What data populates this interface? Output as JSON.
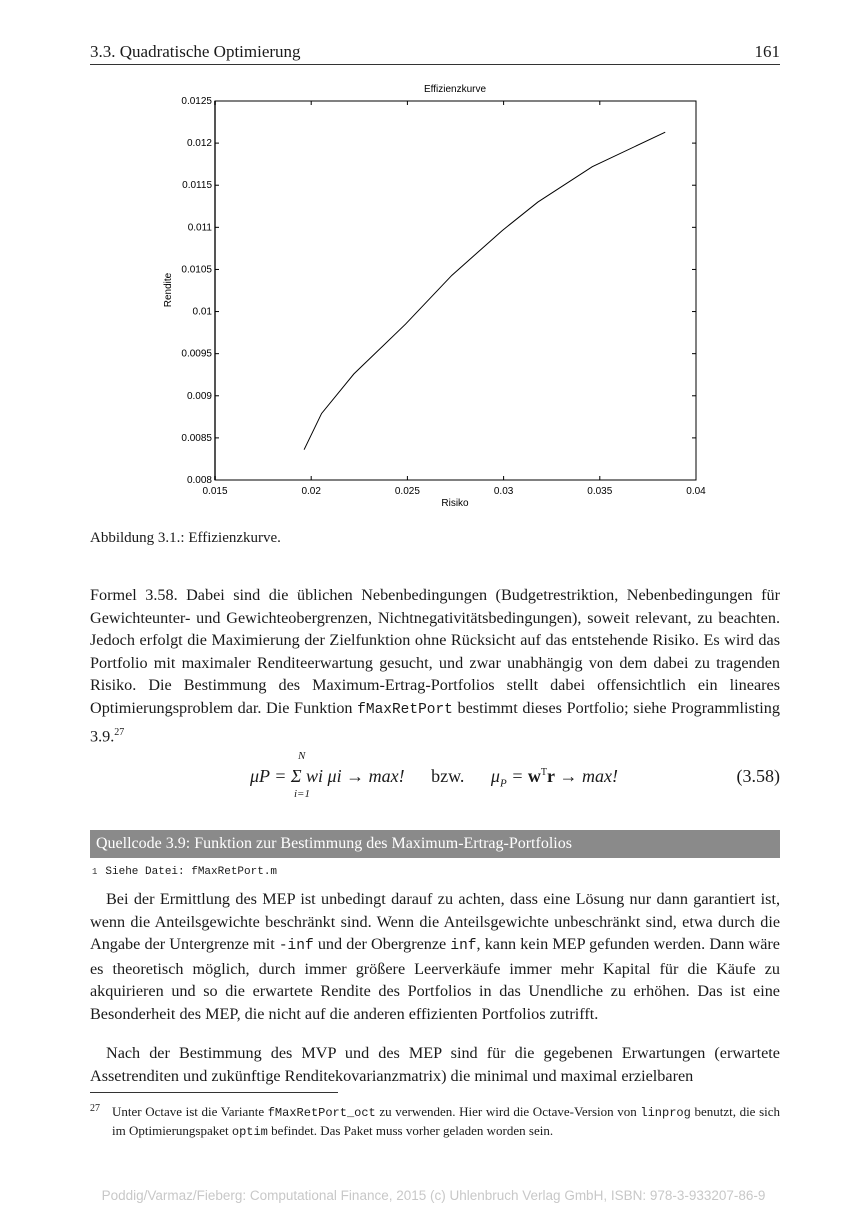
{
  "header": {
    "section": "3.3.  Quadratische Optimierung",
    "page_number": "161"
  },
  "chart_data": {
    "type": "line",
    "title": "Effizienzkurve",
    "xlabel": "Risiko",
    "ylabel": "Rendite",
    "xlim": [
      0.015,
      0.04
    ],
    "ylim": [
      0.008,
      0.0125
    ],
    "xticks": [
      "0.015",
      "0.02",
      "0.025",
      "0.03",
      "0.035",
      "0.04"
    ],
    "yticks": [
      "0.008",
      "0.0085",
      "0.009",
      "0.0095",
      "0.01",
      "0.0105",
      "0.011",
      "0.0115",
      "0.012",
      "0.0125"
    ],
    "grid": false,
    "x": [
      0.01963,
      0.02054,
      0.02222,
      0.0249,
      0.02731,
      0.02992,
      0.03178,
      0.03461,
      0.0384
    ],
    "y": [
      0.00836,
      0.00879,
      0.00926,
      0.00985,
      0.01043,
      0.01096,
      0.0113,
      0.01172,
      0.01213
    ],
    "color": "#000000"
  },
  "figure_caption": "Abbildung 3.1.: Effizienzkurve.",
  "paragraph1": {
    "text_before": "Formel 3.58. Dabei sind die üblichen Nebenbedingungen (Budgetrestriktion, Nebenbedingungen für Gewichteunter- und Gewichteobergrenzen, Nichtnegativitätsbedingungen), soweit relevant, zu beachten. Jedoch erfolgt die Maximierung der Zielfunktion ohne Rücksicht auf das entstehende Risiko. Es wird das Portfolio mit maximaler Renditeerwartung gesucht, und zwar unabhängig von dem dabei zu tragenden Risiko. Die Bestimmung des Maximum-Ertrag-Portfolios stellt dabei offensichtlich ein lineares Optimierungsproblem dar. Die Funktion ",
    "code": "fMaxRetPort",
    "text_after": " bestimmt dieses Portfolio; siehe Programmlisting 3.9.",
    "footnote_ref": "27"
  },
  "equation": {
    "left": "μP = Σ wi μi → max!",
    "sum_upper": "N",
    "sum_lower": "i=1",
    "sep": "bzw.",
    "right": "μP = wᵀr → max!",
    "number": "(3.58)"
  },
  "listing": {
    "title": "Quellcode 3.9: Funktion zur Bestimmung des Maximum-Ertrag-Portfolios",
    "line_number": "1",
    "line": "Siehe Datei: fMaxRetPort.m"
  },
  "paragraph2": {
    "t1": "Bei der Ermittlung des MEP ist unbedingt darauf zu achten, dass eine Lösung nur dann garantiert ist, wenn die Anteilsgewichte beschränkt sind. Wenn die Anteilsgewichte unbeschränkt sind, etwa durch die Angabe der Untergrenze mit ",
    "c1": "-inf",
    "t2": " und der Obergrenze ",
    "c2": "inf",
    "t3": ", kann kein MEP gefunden werden. Dann wäre es theoretisch möglich, durch immer größere Leerverkäufe immer mehr Kapital für die Käufe zu akquirieren und so die erwartete Rendite des Portfolios in das Unendliche zu erhöhen. Das ist eine Besonderheit des MEP, die nicht auf die anderen effizienten Portfolios zutrifft."
  },
  "paragraph3": "Nach der Bestimmung des MVP und des MEP sind für die gegebenen Erwartungen (erwartete Assetrenditen und zukünftige Renditekovarianzmatrix) die minimal und maximal erzielbaren",
  "footnote": {
    "mark": "27",
    "t1": "Unter Octave ist die Variante ",
    "c1": "fMaxRetPort_oct",
    "t2": " zu verwenden. Hier wird die Octave-Version von ",
    "c2": "linprog",
    "t3": " benutzt, die sich im Optimierungspaket ",
    "c3": "optim",
    "t4": " befindet. Das Paket muss vorher geladen worden sein."
  },
  "watermark": "Poddig/Varmaz/Fieberg: Computational Finance, 2015  (c) Uhlenbruch Verlag GmbH, ISBN: 978-3-933207-86-9"
}
